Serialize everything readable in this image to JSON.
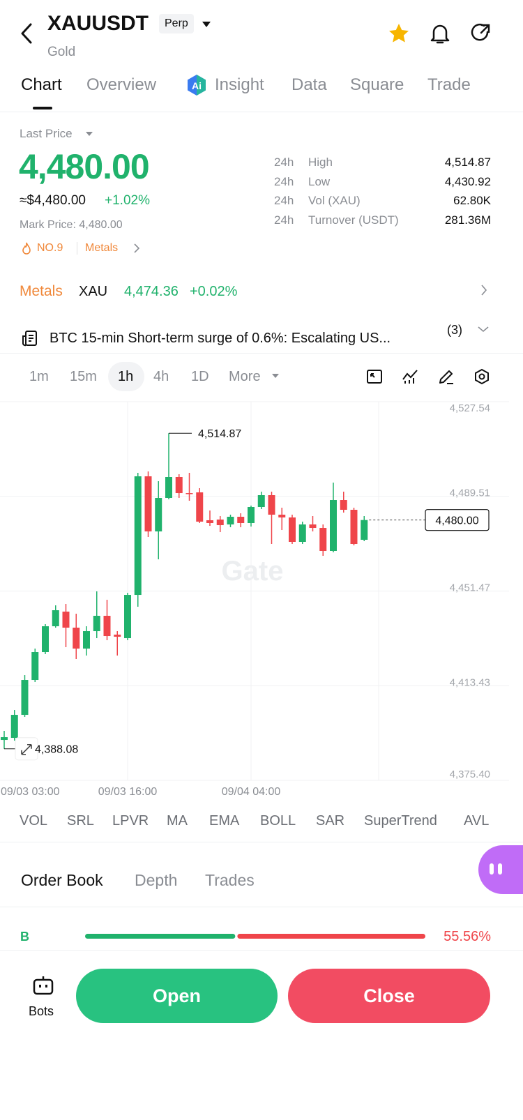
{
  "header": {
    "symbol": "XAUUSDT",
    "badge": "Perp",
    "name": "Gold"
  },
  "tabs": [
    "Chart",
    "Overview",
    "Insight",
    "Data",
    "Square",
    "Trade"
  ],
  "insight_badge": "Ai",
  "price": {
    "label": "Last Price",
    "last": "4,480.00",
    "usd": "≈$4,480.00",
    "change": "+1.02%",
    "mark": "Mark Price: 4,480.00",
    "rank": "NO.9",
    "sector": "Metals"
  },
  "stats": [
    [
      "24h",
      "High",
      "4,514.87"
    ],
    [
      "24h",
      "Low",
      "4,430.92"
    ],
    [
      "24h",
      "Vol (XAU)",
      "62.80K"
    ],
    [
      "24h",
      "Turnover (USDT)",
      "281.36M"
    ]
  ],
  "related": {
    "sector": "Metals",
    "symbol": "XAU",
    "price": "4,474.36",
    "change": "+0.02%"
  },
  "news": {
    "text": "BTC 15-min Short-term surge of 0.6%: Escalating US...",
    "count": "(3)"
  },
  "intervals": [
    "1m",
    "15m",
    "1h",
    "4h",
    "1D",
    "More"
  ],
  "watermark": "Gate",
  "indicators": [
    "VOL",
    "SRL",
    "LPVR",
    "MA",
    "EMA",
    "BOLL",
    "SAR",
    "SuperTrend",
    "AVL"
  ],
  "book_tabs": [
    "Order Book",
    "Depth",
    "Trades"
  ],
  "book": {
    "buy_label": "B",
    "sell": {
      "value": 55.56,
      "label": "55.56%"
    }
  },
  "bottom": {
    "bots": "Bots",
    "open": "Open",
    "close": "Close"
  },
  "chart_data": {
    "type": "candlestick",
    "categories": [
      "09/03 03:00",
      null,
      null,
      null,
      null,
      null,
      null,
      null,
      null,
      null,
      null,
      null,
      "09/03 16:00",
      null,
      null,
      null,
      null,
      null,
      null,
      null,
      null,
      null,
      null,
      null,
      "09/04 04:00",
      null,
      null,
      null,
      null,
      null,
      null,
      null,
      null,
      null,
      null,
      null
    ],
    "open": [
      4391.64,
      4392.48,
      4401.73,
      4415.74,
      4426.95,
      4437.32,
      4443.2,
      4436.76,
      4428.35,
      4435.35,
      4441.52,
      4433.95,
      4432.55,
      4449.92,
      4497.56,
      4475.42,
      4488.87,
      4497.28,
      4490.83,
      4491.11,
      4479.91,
      4480.19,
      4478.22,
      4481.31,
      4478.79,
      4485.23,
      4489.99,
      4482.15,
      4481.03,
      4471.22,
      4478.22,
      4476.82,
      4467.58,
      4488.03,
      4484.11,
      4472.06
    ],
    "high": [
      4395.29,
      4403.69,
      4417.7,
      4428.35,
      4438.16,
      4445.72,
      4446.28,
      4442.36,
      4437.32,
      4451.33,
      4447.96,
      4435.35,
      4450.77,
      4498.96,
      4499.52,
      4495.6,
      4514.87,
      4498.4,
      4498.96,
      4492.8,
      4483.83,
      4481.59,
      4482.15,
      4482.71,
      4485.79,
      4491.39,
      4491.39,
      4484.95,
      4482.15,
      4479.35,
      4481.59,
      4478.22,
      4495.04,
      4491.39,
      4484.95,
      4481.59
    ],
    "low": [
      4388.08,
      4391.36,
      4400.89,
      4414.9,
      4426.11,
      4436.76,
      4428.91,
      4424.15,
      4425.55,
      4432.55,
      4431.71,
      4425.55,
      4431.71,
      4445.16,
      4473.18,
      4464.21,
      4488.31,
      4488.87,
      4487.75,
      4478.79,
      4477.66,
      4475.14,
      4477.1,
      4477.1,
      4477.38,
      4484.39,
      4470.38,
      4475.98,
      4470.38,
      4470.38,
      4475.42,
      4465.62,
      4467.02,
      4482.99,
      4469.82,
      4471.5
    ],
    "close": [
      4392.76,
      4401.73,
      4415.74,
      4426.95,
      4437.32,
      4443.76,
      4436.76,
      4428.35,
      4435.35,
      4441.52,
      4433.39,
      4433.11,
      4449.92,
      4497.56,
      4475.42,
      4488.87,
      4497.28,
      4490.83,
      4490.55,
      4479.35,
      4478.79,
      4477.94,
      4481.31,
      4478.79,
      4485.23,
      4489.99,
      4482.15,
      4481.03,
      4471.22,
      4478.22,
      4476.82,
      4467.58,
      4488.03,
      4484.11,
      4470.38,
      4480.0
    ],
    "up_color": "#20b26c",
    "down_color": "#ef454a",
    "ylim": [
      4375.4,
      4527.54
    ],
    "yticks": [
      {
        "value": 4375.4,
        "label": "4,375.40"
      },
      {
        "value": 4413.43,
        "label": "4,413.43"
      },
      {
        "value": 4451.47,
        "label": "4,451.47"
      },
      {
        "value": 4489.51,
        "label": "4,489.51"
      },
      {
        "value": 4527.54,
        "label": "4,527.54"
      }
    ],
    "grid": true,
    "annotations": [
      {
        "value": 4514.87,
        "label": "4,514.87"
      },
      {
        "value": 4388.08,
        "label": "4,388.08"
      }
    ],
    "last_price": {
      "value": 4480.0,
      "label": "4,480.00"
    }
  }
}
